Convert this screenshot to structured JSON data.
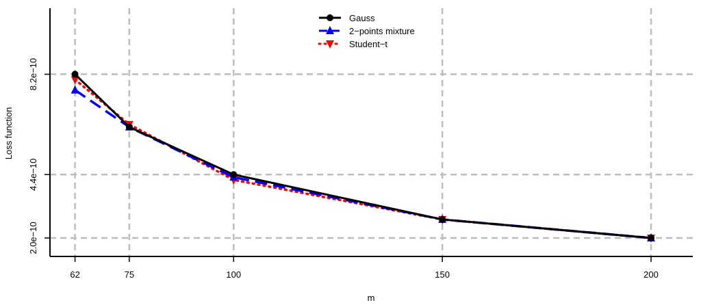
{
  "chart_data": {
    "type": "line",
    "title": "",
    "xlabel": "m",
    "ylabel": "Loss function",
    "x": [
      62,
      75,
      100,
      150,
      200
    ],
    "x_ticks": [
      "62",
      "75",
      "100",
      "150",
      "200"
    ],
    "y_ticks": [
      {
        "value": 8.2e-10,
        "label": "8.2e−10"
      },
      {
        "value": 4.4e-10,
        "label": "4.4e−10"
      },
      {
        "value": 2e-10,
        "label": "2.0e−10"
      }
    ],
    "xlim": [
      56,
      210
    ],
    "ylim": [
      1.3e-10,
      1.07e-09
    ],
    "grid": true,
    "legend_position": "top-center",
    "series": [
      {
        "name": "Gauss",
        "values": [
          8.2e-10,
          6.2e-10,
          4.4e-10,
          2.7e-10,
          2e-10
        ],
        "color": "#000000",
        "style": "solid",
        "marker": "circle"
      },
      {
        "name": "2−points mixture",
        "values": [
          7.6e-10,
          6.2e-10,
          4.3e-10,
          2.7e-10,
          2e-10
        ],
        "color": "#0000ff",
        "style": "dashed",
        "marker": "triangle-up"
      },
      {
        "name": "Student−t",
        "values": [
          8e-10,
          6.3e-10,
          4.2e-10,
          2.7e-10,
          2e-10
        ],
        "color": "#ff0000",
        "style": "dotted",
        "marker": "triangle-down"
      }
    ]
  }
}
